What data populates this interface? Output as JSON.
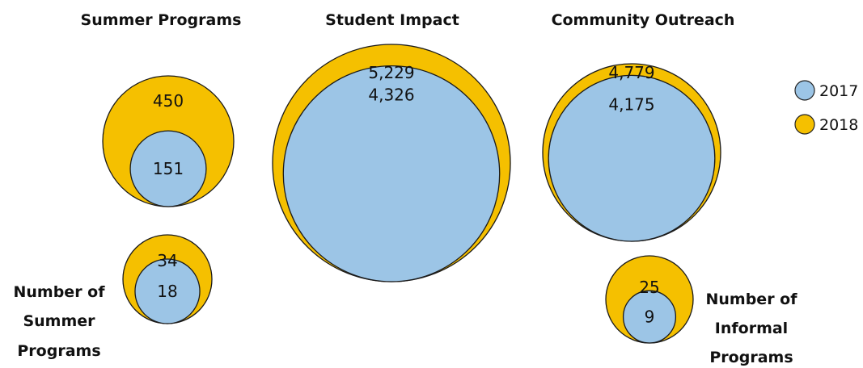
{
  "chart_data": {
    "type": "nested-bubble",
    "colors": {
      "2017": "#9cc5e6",
      "2018": "#f5c000"
    },
    "legend": {
      "placement": "right",
      "entries": [
        {
          "name": "2017",
          "color": "#9cc5e6"
        },
        {
          "name": "2018",
          "color": "#f5c000"
        }
      ]
    },
    "groups": [
      {
        "key": "summer_programs",
        "title": "Summer Programs",
        "values": {
          "2018": 450,
          "2017": 151
        },
        "labels": {
          "2018": "450",
          "2017": "151"
        }
      },
      {
        "key": "student_impact",
        "title": "Student Impact",
        "values": {
          "2018": 5229,
          "2017": 4326
        },
        "labels": {
          "2018": "5,229",
          "2017": "4,326"
        }
      },
      {
        "key": "community_outreach",
        "title": "Community Outreach",
        "values": {
          "2018": 4779,
          "2017": 4175
        },
        "labels": {
          "2018": "4,779",
          "2017": "4,175"
        }
      },
      {
        "key": "number_of_summer_programs",
        "title": "Number of Summer Programs",
        "title_lines": [
          "Number of",
          "Summer",
          "Programs"
        ],
        "values": {
          "2018": 34,
          "2017": 18
        },
        "labels": {
          "2018": "34",
          "2017": "18"
        }
      },
      {
        "key": "number_of_informal_programs",
        "title": "Number of Informal Programs",
        "title_lines": [
          "Number of",
          "Informal",
          "Programs"
        ],
        "values": {
          "2018": 25,
          "2017": 9
        },
        "labels": {
          "2018": "25",
          "2017": "9"
        }
      }
    ]
  }
}
